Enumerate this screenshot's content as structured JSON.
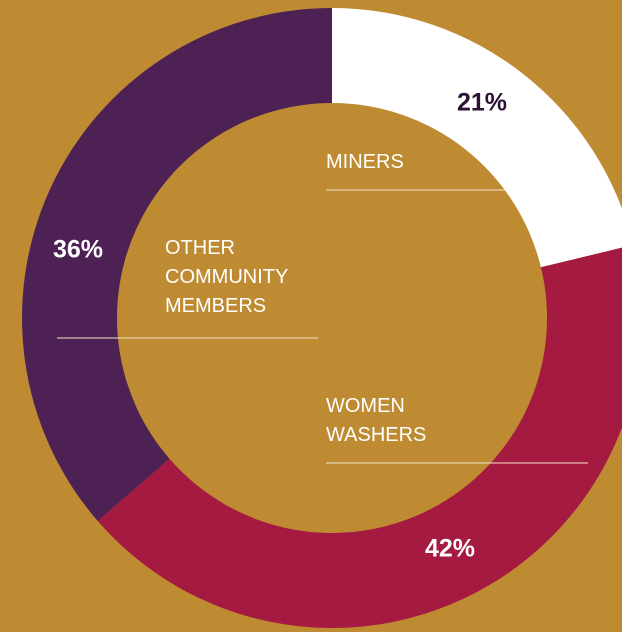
{
  "chart_data": {
    "type": "donut",
    "categories": [
      "MINERS",
      "WOMEN WASHERS",
      "OTHER COMMUNITY MEMBERS"
    ],
    "values": [
      21,
      42,
      36
    ],
    "value_labels": [
      "21%",
      "42%",
      "36%"
    ],
    "colors": [
      "#ffffff",
      "#a51a40",
      "#4e2155"
    ],
    "value_label_colors": [
      "#2d1235",
      "#ffffff",
      "#ffffff"
    ]
  }
}
